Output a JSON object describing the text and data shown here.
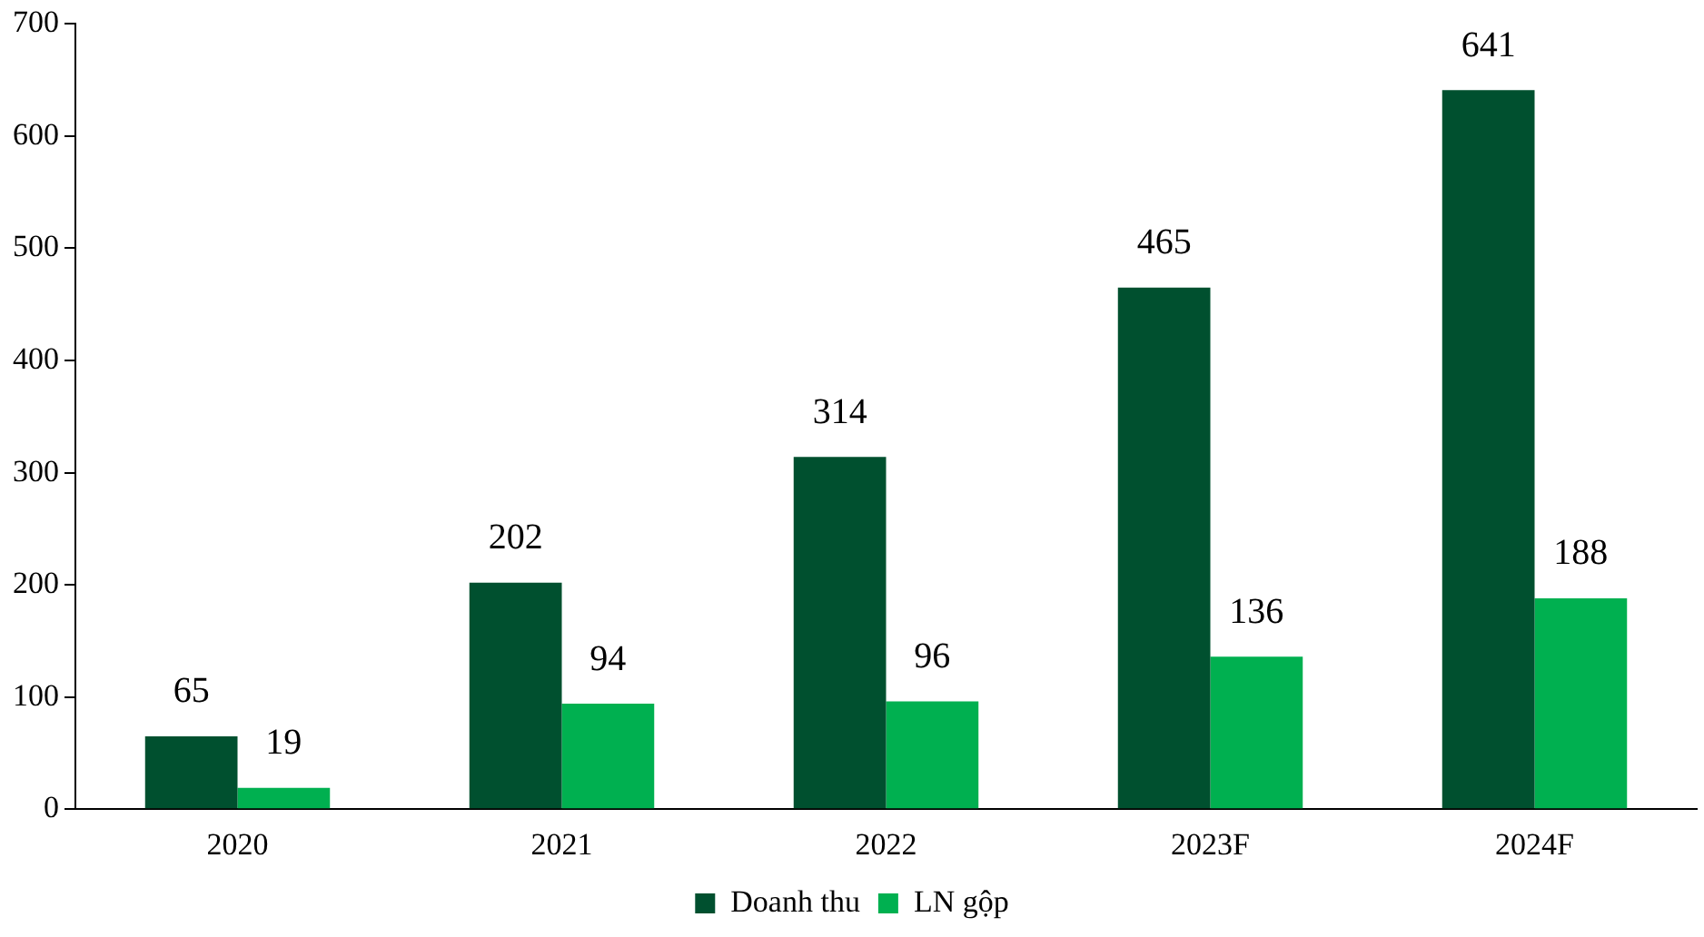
{
  "chart_data": {
    "type": "bar",
    "categories": [
      "2020",
      "2021",
      "2022",
      "2023F",
      "2024F"
    ],
    "series": [
      {
        "name": "Doanh thu",
        "color": "#00502f",
        "values": [
          65,
          202,
          314,
          465,
          641
        ]
      },
      {
        "name": "LN gộp",
        "color": "#00b050",
        "values": [
          19,
          94,
          96,
          136,
          188
        ]
      }
    ],
    "ylim": [
      0,
      700
    ],
    "yticks": [
      0,
      100,
      200,
      300,
      400,
      500,
      600,
      700
    ],
    "grid": false,
    "legend": "bottom",
    "data_labels": true
  }
}
